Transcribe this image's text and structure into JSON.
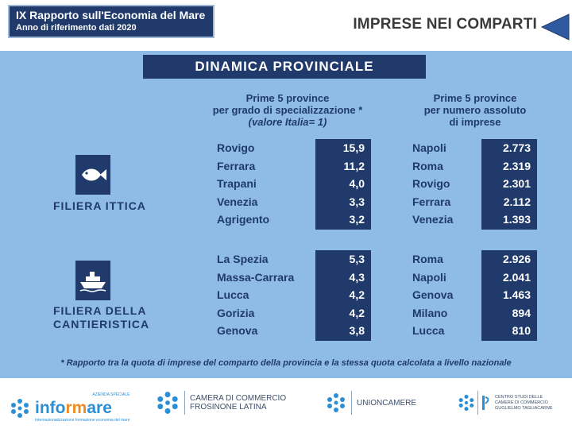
{
  "header": {
    "report_title": "IX Rapporto sull'Economia del Mare",
    "report_subtitle": "Anno di riferimento dati 2020",
    "page_title": "IMPRESE NEI COMPARTI"
  },
  "section": {
    "title": "DINAMICA PROVINCIALE"
  },
  "columns": {
    "left": {
      "line1": "Prime 5 province",
      "line2": "per grado di specializzazione *",
      "line3": "(valore Italia= 1)"
    },
    "right": {
      "line1": "Prime 5 province",
      "line2": "per numero assoluto",
      "line3": "di imprese"
    }
  },
  "sectors": [
    {
      "label_line1": "FILIERA ITTICA",
      "label_line2": "",
      "icon": "fish-icon",
      "specialization": {
        "names": [
          "Rovigo",
          "Ferrara",
          "Trapani",
          "Venezia",
          "Agrigento"
        ],
        "values": [
          "15,9",
          "11,2",
          "4,0",
          "3,3",
          "3,2"
        ]
      },
      "absolute": {
        "names": [
          "Napoli",
          "Roma",
          "Rovigo",
          "Ferrara",
          "Venezia"
        ],
        "values": [
          "2.773",
          "2.319",
          "2.301",
          "2.112",
          "1.393"
        ]
      }
    },
    {
      "label_line1": "FILIERA DELLA",
      "label_line2": "CANTIERISTICA",
      "icon": "ship-icon",
      "specialization": {
        "names": [
          "La Spezia",
          "Massa-Carrara",
          "Lucca",
          "Gorizia",
          "Genova"
        ],
        "values": [
          "5,3",
          "4,3",
          "4,2",
          "4,2",
          "3,8"
        ]
      },
      "absolute": {
        "names": [
          "Roma",
          "Napoli",
          "Genova",
          "Milano",
          "Lucca"
        ],
        "values": [
          "2.926",
          "2.041",
          "1.463",
          "894",
          "810"
        ]
      }
    }
  ],
  "footnote": "* Rapporto tra la quota di imprese del comparto della provincia e la stessa quota calcolata a livello nazionale",
  "logos": {
    "informare": {
      "tag": "AZIENDA SPECIALE",
      "name_a": "info",
      "name_b": "rm",
      "name_c": "are",
      "tagline": "Internazionalizzazione formazione economia del mare"
    },
    "camera": {
      "line1": "CAMERA DI COMMERCIO",
      "line2": "FROSINONE LATINA"
    },
    "unioncamere": {
      "name": "UNIONCAMERE"
    },
    "tagliacarne": {
      "line1": "CENTRO STUDI DELLE",
      "line2": "CAMERE DI COMMERCIO",
      "line3": "GUGLIELMO TAGLIACARNE"
    }
  },
  "colors": {
    "navy": "#1f3a6b",
    "panel": "#8fbbe8",
    "logo_blue": "#2b8fd6",
    "logo_orange": "#f08a24"
  }
}
